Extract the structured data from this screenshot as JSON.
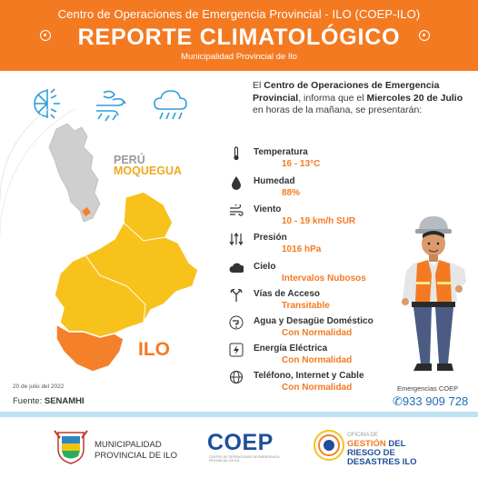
{
  "header": {
    "top_line": "Centro de Operaciones de Emergencia Provincial  - ILO (COEP-ILO)",
    "title": "REPORTE CLIMATOLÓGICO",
    "subtitle": "Municipalidad Provincial de Ilo"
  },
  "intro": {
    "p1": "El ",
    "bold1": "Centro de Operaciones de Emergencia Provincial",
    "p2": ", informa que el ",
    "bold2": "Miercoles 20 de Julio",
    "p3": " en horas de la mañana, se presentarán:"
  },
  "map": {
    "country": "PERÚ",
    "region": "MOQUEGUA",
    "city": "ILO"
  },
  "report_date": "20 de julio del 2022",
  "source": {
    "label": "Fuente: ",
    "value": "SENAMHI"
  },
  "items": [
    {
      "icon": "thermometer-icon",
      "label": "Temperatura",
      "value": "16 - 13°C"
    },
    {
      "icon": "drop-icon",
      "label": "Humedad",
      "value": "88%"
    },
    {
      "icon": "wind-icon",
      "label": "Viento",
      "value": "10 - 19  km/h SUR"
    },
    {
      "icon": "pressure-icon",
      "label": "Presión",
      "value": "1016 hPa"
    },
    {
      "icon": "cloud-icon",
      "label": "Cielo",
      "value": "Intervalos Nubosos"
    },
    {
      "icon": "road-icon",
      "label": "Vías de Acceso",
      "value": "Transitable"
    },
    {
      "icon": "faucet-icon",
      "label": "Agua y Desagüe Doméstico",
      "value": "Con Normalidad"
    },
    {
      "icon": "lightning-icon",
      "label": "Energía Eléctrica",
      "value": "Con Normalidad"
    },
    {
      "icon": "globe-icon",
      "label": "Teléfono, Internet y Cable",
      "value": "Con Normalidad"
    }
  ],
  "emergency": {
    "label": "Emergencias  COEP",
    "phone": "933 909 728"
  },
  "footer": {
    "muni_line1": "MUNICIPALIDAD",
    "muni_line2": "PROVINCIAL DE ILO",
    "coep": "COEP",
    "coep_sub": "CENTRO DE OPERACIONES DE EMERGENCIA PROVINCIAL DE ILO",
    "ogrd_line1": "OFICINA DE",
    "ogrd_line2a": "GESTIÓN",
    "ogrd_line2b": " DEL",
    "ogrd_line3": "RIESGO DE",
    "ogrd_line4": "DESASTRES ILO"
  },
  "colors": {
    "accent": "#f47a22",
    "moquegua_fill": "#f7c21b",
    "ilo_fill": "#f4802a",
    "link_blue": "#1d6fb8"
  }
}
